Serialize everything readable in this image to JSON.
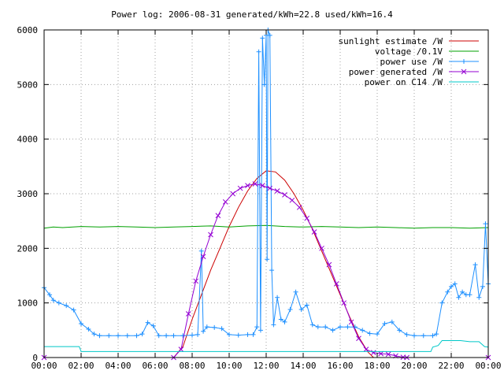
{
  "chart_data": {
    "type": "line",
    "title": "Power log: 2006-08-31 generated/kWh=22.8 used/kWh=16.4",
    "xlabel": "",
    "ylabel": "",
    "xlim": [
      0,
      24
    ],
    "ylim": [
      0,
      6000
    ],
    "x_ticks": [
      "00:00",
      "02:00",
      "04:00",
      "06:00",
      "08:00",
      "10:00",
      "12:00",
      "14:00",
      "16:00",
      "18:00",
      "20:00",
      "22:00",
      "00:00"
    ],
    "y_ticks": [
      "0",
      "1000",
      "2000",
      "3000",
      "4000",
      "5000",
      "6000"
    ],
    "y_tick_values": [
      0,
      1000,
      2000,
      3000,
      4000,
      5000,
      6000
    ],
    "grid": true,
    "legend_position": "top-right",
    "series": [
      {
        "name": "sunlight estimate /W",
        "color": "#cc0000",
        "marker": "none",
        "points": [
          [
            0,
            0
          ],
          [
            7.0,
            0
          ],
          [
            7.5,
            200
          ],
          [
            8.0,
            700
          ],
          [
            8.5,
            1150
          ],
          [
            9.0,
            1600
          ],
          [
            9.5,
            2000
          ],
          [
            10.0,
            2400
          ],
          [
            10.5,
            2750
          ],
          [
            11.0,
            3050
          ],
          [
            11.5,
            3280
          ],
          [
            12.0,
            3420
          ],
          [
            12.5,
            3400
          ],
          [
            13.0,
            3250
          ],
          [
            13.5,
            3000
          ],
          [
            14.0,
            2700
          ],
          [
            14.5,
            2350
          ],
          [
            15.0,
            1950
          ],
          [
            15.5,
            1550
          ],
          [
            16.0,
            1150
          ],
          [
            16.5,
            750
          ],
          [
            17.0,
            380
          ],
          [
            17.5,
            100
          ],
          [
            17.8,
            0
          ],
          [
            24,
            0
          ]
        ]
      },
      {
        "name": "voltage /0.1V",
        "color": "#00a000",
        "marker": "none",
        "points": [
          [
            0,
            2370
          ],
          [
            0.5,
            2390
          ],
          [
            1.0,
            2380
          ],
          [
            2.0,
            2400
          ],
          [
            3.0,
            2390
          ],
          [
            4.0,
            2400
          ],
          [
            5.0,
            2390
          ],
          [
            6.0,
            2380
          ],
          [
            7.0,
            2390
          ],
          [
            8.0,
            2400
          ],
          [
            9.0,
            2410
          ],
          [
            10.0,
            2390
          ],
          [
            11.0,
            2410
          ],
          [
            12.0,
            2420
          ],
          [
            13.0,
            2400
          ],
          [
            14.0,
            2390
          ],
          [
            15.0,
            2400
          ],
          [
            16.0,
            2390
          ],
          [
            17.0,
            2380
          ],
          [
            18.0,
            2390
          ],
          [
            19.0,
            2380
          ],
          [
            20.0,
            2370
          ],
          [
            21.0,
            2380
          ],
          [
            22.0,
            2380
          ],
          [
            23.0,
            2370
          ],
          [
            24,
            2380
          ]
        ]
      },
      {
        "name": "power use /W",
        "color": "#1e90ff",
        "marker": "plus",
        "points": [
          [
            0,
            1280
          ],
          [
            0.3,
            1150
          ],
          [
            0.5,
            1050
          ],
          [
            0.8,
            1000
          ],
          [
            1.2,
            950
          ],
          [
            1.6,
            870
          ],
          [
            2.0,
            620
          ],
          [
            2.4,
            520
          ],
          [
            2.7,
            430
          ],
          [
            3.0,
            400
          ],
          [
            3.5,
            400
          ],
          [
            4.0,
            400
          ],
          [
            4.5,
            400
          ],
          [
            5.0,
            400
          ],
          [
            5.3,
            430
          ],
          [
            5.6,
            640
          ],
          [
            5.9,
            580
          ],
          [
            6.2,
            400
          ],
          [
            6.6,
            400
          ],
          [
            7.0,
            400
          ],
          [
            7.5,
            400
          ],
          [
            8.0,
            410
          ],
          [
            8.3,
            420
          ],
          [
            8.5,
            1950
          ],
          [
            8.6,
            480
          ],
          [
            8.8,
            560
          ],
          [
            9.2,
            550
          ],
          [
            9.6,
            530
          ],
          [
            10.0,
            420
          ],
          [
            10.5,
            410
          ],
          [
            11.0,
            420
          ],
          [
            11.3,
            420
          ],
          [
            11.5,
            560
          ],
          [
            11.6,
            5600
          ],
          [
            11.7,
            500
          ],
          [
            11.8,
            5850
          ],
          [
            11.9,
            5000
          ],
          [
            12.0,
            5900
          ],
          [
            12.05,
            1800
          ],
          [
            12.1,
            6000
          ],
          [
            12.2,
            5900
          ],
          [
            12.3,
            1600
          ],
          [
            12.4,
            600
          ],
          [
            12.6,
            1100
          ],
          [
            12.8,
            700
          ],
          [
            13.0,
            650
          ],
          [
            13.3,
            880
          ],
          [
            13.6,
            1200
          ],
          [
            13.9,
            880
          ],
          [
            14.2,
            960
          ],
          [
            14.5,
            600
          ],
          [
            14.8,
            560
          ],
          [
            15.2,
            560
          ],
          [
            15.6,
            500
          ],
          [
            16.0,
            560
          ],
          [
            16.4,
            560
          ],
          [
            16.8,
            560
          ],
          [
            17.2,
            500
          ],
          [
            17.6,
            440
          ],
          [
            18.0,
            430
          ],
          [
            18.4,
            620
          ],
          [
            18.8,
            650
          ],
          [
            19.2,
            500
          ],
          [
            19.6,
            420
          ],
          [
            20.0,
            400
          ],
          [
            20.5,
            400
          ],
          [
            21.0,
            400
          ],
          [
            21.2,
            430
          ],
          [
            21.5,
            1000
          ],
          [
            21.8,
            1200
          ],
          [
            22.0,
            1300
          ],
          [
            22.2,
            1350
          ],
          [
            22.4,
            1100
          ],
          [
            22.6,
            1200
          ],
          [
            22.8,
            1150
          ],
          [
            23.0,
            1150
          ],
          [
            23.3,
            1700
          ],
          [
            23.5,
            1100
          ],
          [
            23.7,
            1300
          ],
          [
            23.85,
            2450
          ],
          [
            24,
            1350
          ]
        ]
      },
      {
        "name": "power generated /W",
        "color": "#9400d3",
        "marker": "x",
        "points": [
          [
            0,
            0
          ],
          [
            7.0,
            0
          ],
          [
            7.4,
            150
          ],
          [
            7.8,
            800
          ],
          [
            8.2,
            1400
          ],
          [
            8.6,
            1850
          ],
          [
            9.0,
            2250
          ],
          [
            9.4,
            2600
          ],
          [
            9.8,
            2850
          ],
          [
            10.2,
            3000
          ],
          [
            10.6,
            3100
          ],
          [
            11.0,
            3150
          ],
          [
            11.4,
            3180
          ],
          [
            11.8,
            3150
          ],
          [
            12.2,
            3100
          ],
          [
            12.6,
            3050
          ],
          [
            13.0,
            2980
          ],
          [
            13.4,
            2880
          ],
          [
            13.8,
            2750
          ],
          [
            14.2,
            2550
          ],
          [
            14.6,
            2300
          ],
          [
            15.0,
            2000
          ],
          [
            15.4,
            1700
          ],
          [
            15.8,
            1350
          ],
          [
            16.2,
            1000
          ],
          [
            16.6,
            650
          ],
          [
            17.0,
            350
          ],
          [
            17.4,
            150
          ],
          [
            17.8,
            90
          ],
          [
            18.2,
            70
          ],
          [
            18.6,
            60
          ],
          [
            19.0,
            30
          ],
          [
            19.4,
            5
          ],
          [
            19.6,
            0
          ],
          [
            24,
            0
          ]
        ]
      },
      {
        "name": "power on C14 /W",
        "color": "#00c8c8",
        "marker": "none",
        "points": [
          [
            0,
            200
          ],
          [
            1.9,
            200
          ],
          [
            2.0,
            110
          ],
          [
            3.0,
            110
          ],
          [
            5.0,
            110
          ],
          [
            7.0,
            110
          ],
          [
            9.0,
            110
          ],
          [
            11.0,
            110
          ],
          [
            13.0,
            110
          ],
          [
            15.0,
            110
          ],
          [
            17.0,
            110
          ],
          [
            19.0,
            110
          ],
          [
            20.9,
            110
          ],
          [
            21.0,
            190
          ],
          [
            21.3,
            220
          ],
          [
            21.5,
            310
          ],
          [
            22.5,
            310
          ],
          [
            23.0,
            290
          ],
          [
            23.5,
            290
          ],
          [
            23.8,
            200
          ],
          [
            24,
            190
          ]
        ]
      }
    ]
  }
}
